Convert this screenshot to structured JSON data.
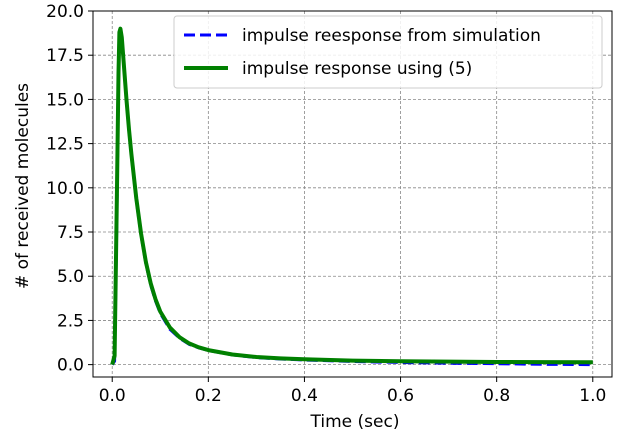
{
  "chart_data": {
    "type": "line",
    "title": "",
    "xlabel": "Time (sec)",
    "ylabel": "# of received molecules",
    "xlim": [
      -0.04,
      1.04
    ],
    "ylim": [
      -0.7,
      20.0
    ],
    "xticks": [
      0.0,
      0.2,
      0.4,
      0.6,
      0.8,
      1.0
    ],
    "xtick_labels": [
      "0.0",
      "0.2",
      "0.4",
      "0.6",
      "0.8",
      "1.0"
    ],
    "yticks": [
      0.0,
      2.5,
      5.0,
      7.5,
      10.0,
      12.5,
      15.0,
      17.5,
      20.0
    ],
    "ytick_labels": [
      "0.0",
      "2.5",
      "5.0",
      "7.5",
      "10.0",
      "12.5",
      "15.0",
      "17.5",
      "20.0"
    ],
    "grid": true,
    "legend_position": "top-right",
    "series": [
      {
        "name": "impulse reesponse from simulation",
        "color": "#0000ff",
        "style": "dashed",
        "x": [
          0.0,
          0.005,
          0.01,
          0.013,
          0.015,
          0.017,
          0.02,
          0.025,
          0.03,
          0.035,
          0.04,
          0.05,
          0.06,
          0.07,
          0.08,
          0.09,
          0.1,
          0.12,
          0.14,
          0.16,
          0.18,
          0.2,
          0.25,
          0.3,
          0.35,
          0.4,
          0.5,
          0.6,
          0.7,
          0.8,
          0.9,
          1.0
        ],
        "y": [
          0.0,
          0.2,
          9.0,
          16.0,
          18.6,
          18.9,
          18.4,
          16.6,
          14.8,
          13.2,
          11.8,
          9.3,
          7.3,
          5.7,
          4.5,
          3.6,
          2.9,
          2.0,
          1.5,
          1.15,
          0.95,
          0.8,
          0.55,
          0.4,
          0.32,
          0.26,
          0.18,
          0.12,
          0.08,
          0.05,
          0.02,
          0.0
        ]
      },
      {
        "name": "impulse response using (5)",
        "color": "#008000",
        "style": "solid",
        "x": [
          0.0,
          0.005,
          0.01,
          0.013,
          0.015,
          0.017,
          0.02,
          0.025,
          0.03,
          0.035,
          0.04,
          0.05,
          0.06,
          0.07,
          0.08,
          0.09,
          0.1,
          0.12,
          0.14,
          0.16,
          0.18,
          0.2,
          0.25,
          0.3,
          0.35,
          0.4,
          0.5,
          0.6,
          0.7,
          0.8,
          0.9,
          1.0
        ],
        "y": [
          0.0,
          0.5,
          10.0,
          16.5,
          18.8,
          19.0,
          18.5,
          16.7,
          14.9,
          13.3,
          11.9,
          9.4,
          7.4,
          5.8,
          4.6,
          3.7,
          3.0,
          2.1,
          1.55,
          1.2,
          0.98,
          0.82,
          0.57,
          0.43,
          0.35,
          0.3,
          0.23,
          0.19,
          0.17,
          0.15,
          0.14,
          0.13
        ]
      }
    ]
  }
}
